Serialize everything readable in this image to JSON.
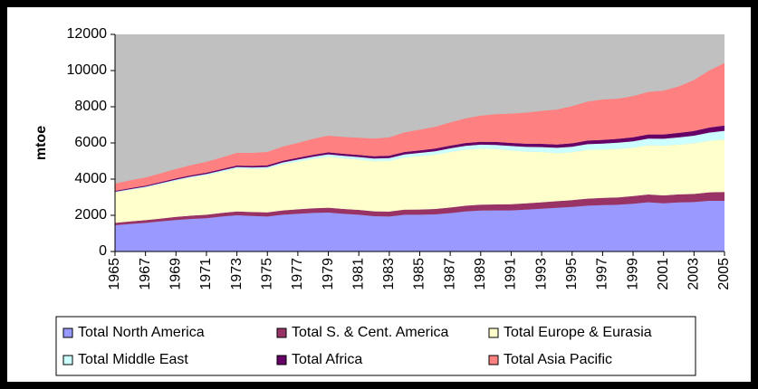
{
  "chart_data": {
    "type": "stacked-area",
    "y_label": "mtoe",
    "x": [
      1965,
      1966,
      1967,
      1968,
      1969,
      1970,
      1971,
      1972,
      1973,
      1974,
      1975,
      1976,
      1977,
      1978,
      1979,
      1980,
      1981,
      1982,
      1983,
      1984,
      1985,
      1986,
      1987,
      1988,
      1989,
      1990,
      1991,
      1992,
      1993,
      1994,
      1995,
      1996,
      1997,
      1998,
      1999,
      2000,
      2001,
      2002,
      2003,
      2004,
      2005
    ],
    "xlim": [
      1965,
      2005
    ],
    "xticks": [
      1965,
      1967,
      1969,
      1971,
      1973,
      1975,
      1977,
      1979,
      1981,
      1983,
      1985,
      1987,
      1989,
      1991,
      1993,
      1995,
      1997,
      1999,
      2001,
      2003,
      2005
    ],
    "ylim": [
      0,
      12000
    ],
    "yticks": [
      0,
      2000,
      4000,
      6000,
      8000,
      10000,
      12000
    ],
    "plot_background": "#c0c0c0",
    "legend": "bottom",
    "series": [
      {
        "name": "Total North America",
        "color": "#9999ff",
        "values": [
          1450,
          1520,
          1580,
          1660,
          1740,
          1800,
          1840,
          1930,
          2000,
          1960,
          1930,
          2030,
          2080,
          2130,
          2150,
          2080,
          2030,
          1950,
          1930,
          2030,
          2030,
          2050,
          2120,
          2210,
          2260,
          2270,
          2270,
          2310,
          2360,
          2410,
          2460,
          2530,
          2560,
          2580,
          2640,
          2720,
          2660,
          2710,
          2730,
          2800,
          2800
        ]
      },
      {
        "name": "Total S. & Cent. America",
        "color": "#993366",
        "values": [
          130,
          140,
          150,
          160,
          170,
          180,
          190,
          200,
          210,
          220,
          230,
          240,
          250,
          260,
          270,
          270,
          270,
          270,
          275,
          285,
          290,
          300,
          310,
          320,
          325,
          330,
          340,
          350,
          360,
          370,
          380,
          390,
          400,
          410,
          420,
          430,
          440,
          445,
          450,
          470,
          490
        ]
      },
      {
        "name": "Total Europe & Eurasia",
        "color": "#ffffcc",
        "values": [
          1680,
          1740,
          1800,
          1900,
          2000,
          2100,
          2180,
          2270,
          2380,
          2380,
          2420,
          2550,
          2640,
          2730,
          2820,
          2800,
          2780,
          2770,
          2800,
          2880,
          2950,
          3000,
          3070,
          3100,
          3100,
          3060,
          2980,
          2860,
          2780,
          2660,
          2650,
          2700,
          2680,
          2680,
          2680,
          2720,
          2750,
          2750,
          2800,
          2850,
          2900
        ]
      },
      {
        "name": "Total Middle East",
        "color": "#ccffff",
        "values": [
          40,
          45,
          50,
          55,
          60,
          65,
          70,
          75,
          80,
          85,
          90,
          100,
          110,
          120,
          130,
          135,
          140,
          150,
          160,
          170,
          180,
          190,
          200,
          210,
          220,
          230,
          240,
          260,
          270,
          290,
          300,
          310,
          320,
          340,
          350,
          370,
          380,
          400,
          420,
          450,
          480
        ]
      },
      {
        "name": "Total Africa",
        "color": "#660066",
        "values": [
          50,
          55,
          58,
          62,
          66,
          70,
          74,
          78,
          82,
          86,
          90,
          95,
          100,
          105,
          110,
          115,
          120,
          125,
          130,
          135,
          140,
          145,
          150,
          155,
          160,
          165,
          170,
          175,
          180,
          185,
          190,
          200,
          210,
          215,
          220,
          230,
          240,
          250,
          260,
          280,
          290
        ]
      },
      {
        "name": "Total Asia Pacific",
        "color": "#ff8080",
        "values": [
          400,
          430,
          450,
          480,
          520,
          560,
          600,
          640,
          700,
          720,
          740,
          780,
          820,
          880,
          920,
          930,
          950,
          980,
          1010,
          1080,
          1140,
          1200,
          1280,
          1360,
          1440,
          1530,
          1620,
          1720,
          1820,
          1930,
          2050,
          2150,
          2230,
          2220,
          2280,
          2350,
          2420,
          2570,
          2820,
          3150,
          3450
        ]
      }
    ]
  }
}
